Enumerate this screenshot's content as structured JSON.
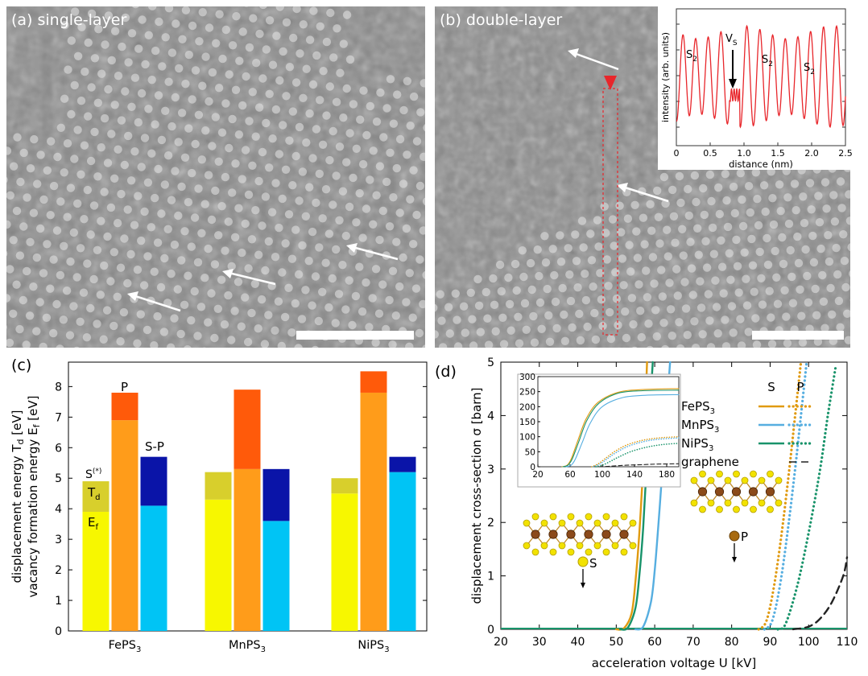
{
  "panels": {
    "a": {
      "label": "(a) single-layer"
    },
    "b": {
      "label": "(b) double-layer"
    },
    "c": {
      "label": "(c)"
    },
    "d": {
      "label": "(d)"
    }
  },
  "inset_b": {
    "ylabel": "intensity (arb. units)",
    "xlabel": "distance (nm)",
    "xticks": [
      "0",
      "0.5",
      "1.0",
      "1.5",
      "2.0",
      "2.5"
    ],
    "annotations": {
      "s2": "S",
      "s2_sub": "2",
      "vs": "V",
      "vs_sub": "S"
    }
  },
  "colors": {
    "S_Ef": "#f7f700",
    "S_Td": "#d8cf2c",
    "P_Ef": "#ff9c1a",
    "P_Td": "#ff5a0a",
    "SP_Ef": "#00c4f5",
    "SP_Td": "#0a14a8",
    "FePS3": "#e09a10",
    "MnPS3": "#56aee0",
    "NiPS3": "#18936a",
    "graphene": "#222222",
    "profile": "#e8262b"
  },
  "chart_data": [
    {
      "id": "c",
      "type": "bar",
      "stacked": true,
      "ylabel_1": "displacement energy T",
      "ylabel_1_sub": "d",
      "ylabel_1_unit": " [eV]",
      "ylabel_2": "vacancy formation energy E",
      "ylabel_2_sub": "f",
      "ylabel_2_unit": " [eV]",
      "ylim": [
        0,
        8.8
      ],
      "yticks": [
        0,
        1,
        2,
        3,
        4,
        5,
        6,
        7,
        8
      ],
      "categories": [
        {
          "name": "FePS",
          "sub": "3"
        },
        {
          "name": "MnPS",
          "sub": "3"
        },
        {
          "name": "NiPS",
          "sub": "3"
        }
      ],
      "series": [
        {
          "name": "S",
          "Ef": [
            3.9,
            4.3,
            4.5
          ],
          "Td": [
            4.9,
            5.2,
            5.0
          ]
        },
        {
          "name": "P",
          "Ef": [
            6.9,
            5.3,
            7.8
          ],
          "Td": [
            7.8,
            7.9,
            8.5
          ]
        },
        {
          "name": "S-P",
          "Ef": [
            4.1,
            3.6,
            5.2
          ],
          "Td": [
            5.7,
            5.3,
            5.7
          ]
        }
      ],
      "annotations": {
        "S": "S",
        "S_sup": "(*)",
        "Td": "T",
        "Td_sub": "d",
        "Ef": "E",
        "Ef_sub": "f",
        "P": "P",
        "SP": "S-P"
      }
    },
    {
      "id": "d",
      "type": "line",
      "xlabel": "acceleration voltage U [kV]",
      "ylabel": "displacement cross-section σ [barn]",
      "xlim": [
        20,
        110
      ],
      "ylim": [
        0,
        5
      ],
      "xticks": [
        20,
        30,
        40,
        50,
        60,
        70,
        80,
        90,
        100,
        110
      ],
      "yticks": [
        0,
        1,
        2,
        3,
        4,
        5
      ],
      "legend": {
        "header_s": "S",
        "header_p": "P",
        "placement": "top-right",
        "entries": [
          {
            "name": "FePS",
            "sub": "3"
          },
          {
            "name": "MnPS",
            "sub": "3"
          },
          {
            "name": "NiPS",
            "sub": "3"
          },
          {
            "name": "graphene",
            "sub": ""
          }
        ]
      },
      "series": [
        {
          "name": "FePS3 S",
          "style": "solid",
          "x": [
            50,
            52,
            54,
            55,
            56,
            57,
            58
          ],
          "y": [
            0,
            0.02,
            0.3,
            0.9,
            1.8,
            3.1,
            5.0
          ]
        },
        {
          "name": "NiPS3 S",
          "style": "solid",
          "x": [
            51,
            53,
            55,
            56,
            57,
            58,
            59.5
          ],
          "y": [
            0,
            0.03,
            0.4,
            1.0,
            1.9,
            3.2,
            5.0
          ]
        },
        {
          "name": "MnPS3 S",
          "style": "solid",
          "x": [
            55,
            57,
            59,
            60,
            61,
            62,
            64
          ],
          "y": [
            0,
            0.05,
            0.5,
            1.1,
            2.0,
            3.0,
            5.0
          ]
        },
        {
          "name": "FePS3 P",
          "style": "dotted",
          "x": [
            87,
            89,
            91,
            93,
            95,
            96.5,
            98
          ],
          "y": [
            0,
            0.15,
            0.8,
            1.8,
            3.0,
            4.0,
            5.0
          ]
        },
        {
          "name": "MnPS3 P",
          "style": "dotted",
          "x": [
            88.5,
            90.5,
            92.5,
            94.5,
            96.5,
            98,
            99.5
          ],
          "y": [
            0,
            0.15,
            0.8,
            1.8,
            3.0,
            4.0,
            5.0
          ]
        },
        {
          "name": "NiPS3 P",
          "style": "dotted",
          "x": [
            92,
            94,
            97,
            100,
            103,
            105,
            107
          ],
          "y": [
            0,
            0.1,
            0.8,
            1.8,
            3.0,
            4.0,
            4.9
          ]
        },
        {
          "name": "graphene",
          "style": "dashed",
          "x": [
            96,
            100,
            103,
            106,
            109,
            110
          ],
          "y": [
            0,
            0.05,
            0.2,
            0.5,
            1.0,
            1.35
          ]
        }
      ],
      "atom_labels": {
        "s": "S",
        "p": "P"
      },
      "inset": {
        "xlim": [
          20,
          195
        ],
        "ylim": [
          0,
          300
        ],
        "xticks": [
          20,
          60,
          100,
          140,
          180
        ],
        "yticks": [
          0,
          50,
          100,
          150,
          200,
          250,
          300
        ],
        "series": [
          {
            "name": "FePS3 S",
            "style": "solid",
            "x": [
              50,
              55,
              58,
              62,
              70,
              80,
              95,
              120,
              150,
              195
            ],
            "y": [
              0,
              3,
              10,
              30,
              90,
              160,
              215,
              248,
              257,
              260
            ]
          },
          {
            "name": "NiPS3 S",
            "style": "solid",
            "x": [
              51,
              56,
              59,
              63,
              71,
              81,
              96,
              120,
              150,
              195
            ],
            "y": [
              0,
              3,
              10,
              28,
              85,
              155,
              212,
              245,
              253,
              255
            ]
          },
          {
            "name": "MnPS3 S",
            "style": "solid",
            "x": [
              55,
              60,
              63,
              67,
              75,
              85,
              100,
              125,
              155,
              195
            ],
            "y": [
              0,
              3,
              10,
              28,
              80,
              145,
              200,
              230,
              238,
              240
            ]
          },
          {
            "name": "FePS3 P",
            "style": "dotted",
            "x": [
              87,
              95,
              105,
              115,
              130,
              150,
              170,
              195
            ],
            "y": [
              0,
              10,
              30,
              50,
              72,
              88,
              96,
              100
            ]
          },
          {
            "name": "MnPS3 P",
            "style": "dotted",
            "x": [
              88.5,
              97,
              107,
              117,
              132,
              152,
              172,
              195
            ],
            "y": [
              0,
              9,
              28,
              47,
              68,
              84,
              92,
              96
            ]
          },
          {
            "name": "NiPS3 P",
            "style": "dotted",
            "x": [
              92,
              100,
              110,
              120,
              135,
              155,
              175,
              195
            ],
            "y": [
              0,
              5,
              18,
              32,
              50,
              65,
              74,
              78
            ]
          },
          {
            "name": "graphene",
            "style": "dashed",
            "x": [
              96,
              110,
              130,
              150,
              170,
              195
            ],
            "y": [
              0,
              2,
              5,
              7,
              9,
              10
            ]
          }
        ]
      }
    }
  ]
}
